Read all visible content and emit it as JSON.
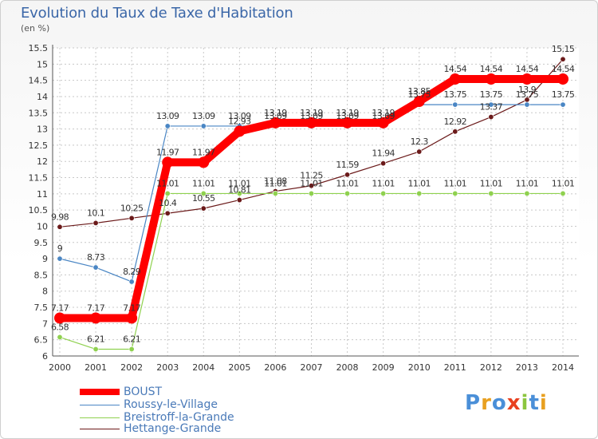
{
  "title": "Evolution du Taux de Taxe d'Habitation",
  "unit": "(en %)",
  "logo": {
    "text": "Proxiti",
    "colors": [
      "#4a8fd8",
      "#e8a020",
      "#4a8fd8",
      "#e84020",
      "#8cc63f",
      "#4a8fd8",
      "#e8a020"
    ]
  },
  "chart_data": {
    "type": "line",
    "categories": [
      "2000",
      "2001",
      "2002",
      "2003",
      "2004",
      "2005",
      "2006",
      "2007",
      "2008",
      "2009",
      "2010",
      "2011",
      "2012",
      "2013",
      "2014"
    ],
    "ylim": [
      6,
      15.5
    ],
    "yticks": [
      "6",
      "6.5",
      "7",
      "7.5",
      "8",
      "8.5",
      "9",
      "9.5",
      "10",
      "10.5",
      "11",
      "11.5",
      "12",
      "12.5",
      "13",
      "13.5",
      "14",
      "14.5",
      "15",
      "15.5"
    ],
    "grid": true,
    "series": [
      {
        "name": "BOUST",
        "color": "#ff0000",
        "values": [
          7.17,
          7.17,
          7.17,
          11.97,
          11.97,
          12.93,
          13.19,
          13.19,
          13.19,
          13.19,
          13.85,
          14.54,
          14.54,
          14.54,
          14.54
        ],
        "labels": [
          "7.17",
          "7.17",
          "7.17",
          "11.97",
          "11.97",
          "12.93",
          "13.19",
          "13.19",
          "13.19",
          "13.19",
          "13.85",
          "14.54",
          "14.54",
          "14.54",
          "14.54"
        ]
      },
      {
        "name": "Roussy-le-Village",
        "color": "#4a86c4",
        "values": [
          9,
          8.73,
          8.29,
          13.09,
          13.09,
          13.09,
          13.09,
          13.09,
          13.09,
          13.09,
          13.75,
          13.75,
          13.75,
          13.75,
          13.75
        ],
        "labels": [
          "9",
          "8.73",
          "8.29",
          "13.09",
          "13.09",
          "13.09",
          "13.09",
          "13.09",
          "13.09",
          "13.09",
          "13.75",
          "13.75",
          "13.75",
          "13.75",
          "13.75"
        ]
      },
      {
        "name": "Breistroff-la-Grande",
        "color": "#8fd14f",
        "values": [
          6.58,
          6.21,
          6.21,
          11.01,
          11.01,
          11.01,
          11.01,
          11.01,
          11.01,
          11.01,
          11.01,
          11.01,
          11.01,
          11.01,
          11.01
        ],
        "labels": [
          "6.58",
          "6.21",
          "6.21",
          "11.01",
          "11.01",
          "11.01",
          "11.01",
          "11.01",
          "11.01",
          "11.01",
          "11.01",
          "11.01",
          "11.01",
          "11.01",
          "11.01"
        ]
      },
      {
        "name": "Hettange-Grande",
        "color": "#6b1a1a",
        "values": [
          9.98,
          10.1,
          10.25,
          10.4,
          10.55,
          10.81,
          11.08,
          11.25,
          11.59,
          11.94,
          12.3,
          12.92,
          13.37,
          13.9,
          15.15
        ],
        "labels": [
          "9.98",
          "10.1",
          "10.25",
          "10.4",
          "10.55",
          "10.81",
          "11.08",
          "11.25",
          "11.59",
          "11.94",
          "12.3",
          "12.92",
          "13.37",
          "13.9",
          "15.15"
        ]
      }
    ]
  }
}
